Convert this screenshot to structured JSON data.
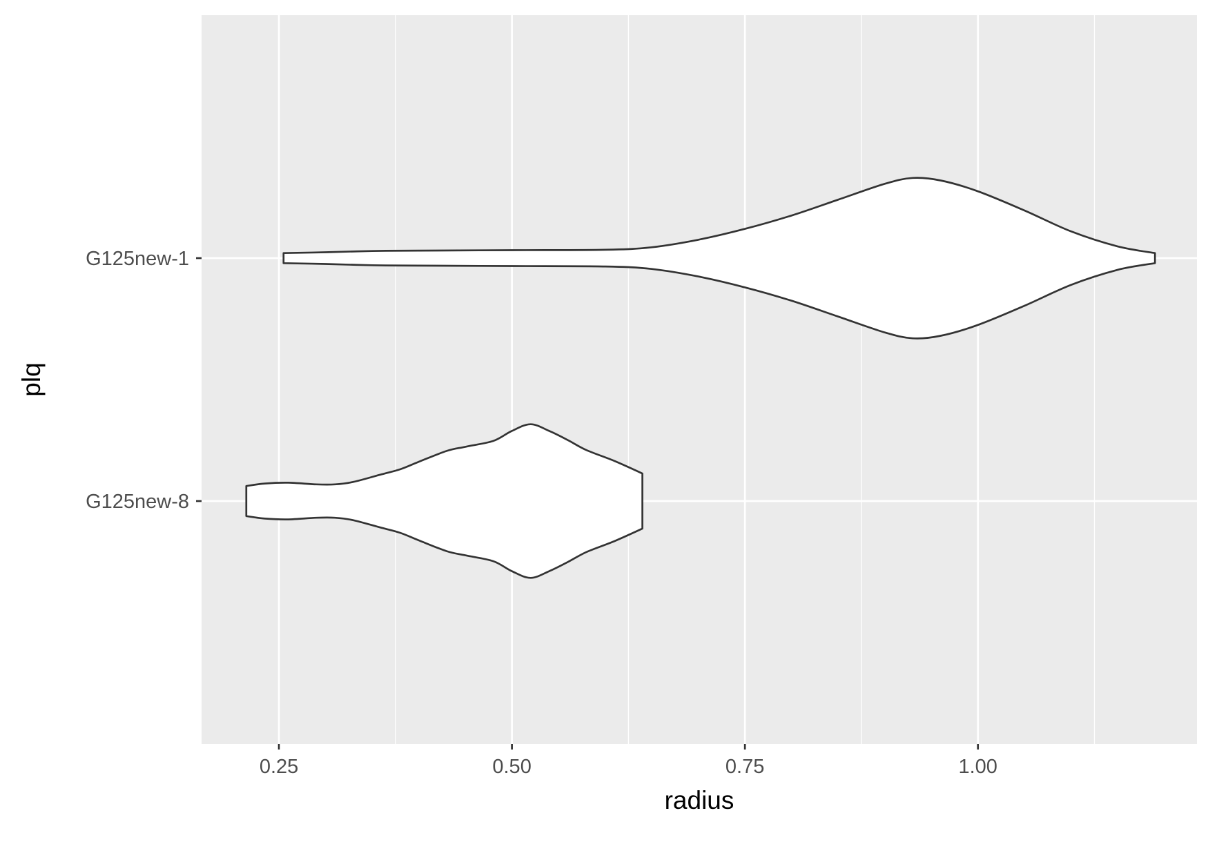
{
  "chart_data": {
    "type": "violin",
    "orientation": "horizontal",
    "xlabel": "radius",
    "ylabel": "plq",
    "xlim": [
      0.167,
      1.235
    ],
    "x_ticks": [
      0.25,
      0.5,
      0.75,
      1.0
    ],
    "x_tick_labels": [
      "0.25",
      "0.50",
      "0.75",
      "1.00"
    ],
    "categories": [
      "G125new-8",
      "G125new-1"
    ],
    "grid": true,
    "background_color": "#ebebeb",
    "grid_color": "#ffffff",
    "violin_fill": "#ffffff",
    "violin_stroke": "#333333",
    "series": [
      {
        "category": "G125new-1",
        "min": 0.255,
        "max": 1.19,
        "profile": [
          [
            0.255,
            0.06
          ],
          [
            0.3,
            0.07
          ],
          [
            0.35,
            0.085
          ],
          [
            0.4,
            0.09
          ],
          [
            0.5,
            0.095
          ],
          [
            0.6,
            0.1
          ],
          [
            0.65,
            0.13
          ],
          [
            0.7,
            0.22
          ],
          [
            0.75,
            0.35
          ],
          [
            0.8,
            0.51
          ],
          [
            0.85,
            0.7
          ],
          [
            0.9,
            0.89
          ],
          [
            0.93,
            0.96
          ],
          [
            0.96,
            0.93
          ],
          [
            1.0,
            0.8
          ],
          [
            1.05,
            0.57
          ],
          [
            1.1,
            0.32
          ],
          [
            1.15,
            0.14
          ],
          [
            1.19,
            0.06
          ]
        ]
      },
      {
        "category": "G125new-8",
        "min": 0.215,
        "max": 0.64,
        "profile": [
          [
            0.215,
            0.18
          ],
          [
            0.235,
            0.21
          ],
          [
            0.26,
            0.22
          ],
          [
            0.29,
            0.2
          ],
          [
            0.31,
            0.2
          ],
          [
            0.33,
            0.23
          ],
          [
            0.36,
            0.32
          ],
          [
            0.38,
            0.38
          ],
          [
            0.4,
            0.47
          ],
          [
            0.43,
            0.6
          ],
          [
            0.45,
            0.65
          ],
          [
            0.48,
            0.72
          ],
          [
            0.5,
            0.84
          ],
          [
            0.52,
            0.92
          ],
          [
            0.54,
            0.84
          ],
          [
            0.56,
            0.73
          ],
          [
            0.58,
            0.61
          ],
          [
            0.61,
            0.48
          ],
          [
            0.64,
            0.33
          ]
        ]
      }
    ]
  }
}
